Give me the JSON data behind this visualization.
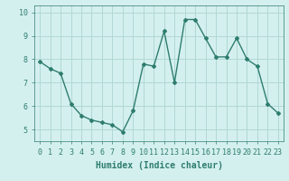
{
  "x": [
    0,
    1,
    2,
    3,
    4,
    5,
    6,
    7,
    8,
    9,
    10,
    11,
    12,
    13,
    14,
    15,
    16,
    17,
    18,
    19,
    20,
    21,
    22,
    23
  ],
  "y": [
    7.9,
    7.6,
    7.4,
    6.1,
    5.6,
    5.4,
    5.3,
    5.2,
    4.9,
    5.8,
    7.8,
    7.7,
    9.2,
    7.0,
    9.7,
    9.7,
    8.9,
    8.1,
    8.1,
    8.9,
    8.0,
    7.7,
    6.1,
    5.7
  ],
  "line_color": "#2e7d6e",
  "text_color": "#2e7d6e",
  "marker": "D",
  "marker_size": 2,
  "bg_color": "#d4f0ee",
  "grid_color": "#b0d8d4",
  "xlabel": "Humidex (Indice chaleur)",
  "xlim": [
    -0.5,
    23.5
  ],
  "ylim": [
    4.5,
    10.3
  ],
  "yticks": [
    5,
    6,
    7,
    8,
    9,
    10
  ],
  "xticks": [
    0,
    1,
    2,
    3,
    4,
    5,
    6,
    7,
    8,
    9,
    10,
    11,
    12,
    13,
    14,
    15,
    16,
    17,
    18,
    19,
    20,
    21,
    22,
    23
  ],
  "xtick_labels": [
    "0",
    "1",
    "2",
    "3",
    "4",
    "5",
    "6",
    "7",
    "8",
    "9",
    "10",
    "11",
    "12",
    "13",
    "14",
    "15",
    "16",
    "17",
    "18",
    "19",
    "20",
    "21",
    "22",
    "23"
  ],
  "tick_fontsize": 6,
  "xlabel_fontsize": 7,
  "line_width": 1.0
}
